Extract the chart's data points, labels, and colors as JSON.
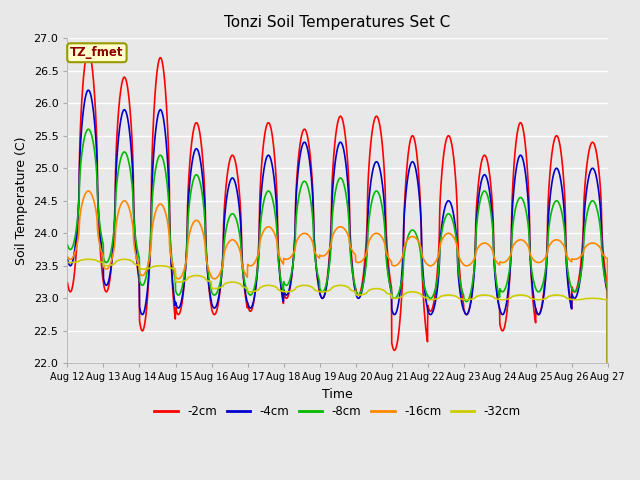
{
  "title": "Tonzi Soil Temperatures Set C",
  "xlabel": "Time",
  "ylabel": "Soil Temperature (C)",
  "ylim": [
    22.0,
    27.0
  ],
  "yticks": [
    22.0,
    22.5,
    23.0,
    23.5,
    24.0,
    24.5,
    25.0,
    25.5,
    26.0,
    26.5,
    27.0
  ],
  "x_labels": [
    "Aug 12",
    "Aug 13",
    "Aug 14",
    "Aug 15",
    "Aug 16",
    "Aug 17",
    "Aug 18",
    "Aug 19",
    "Aug 20",
    "Aug 21",
    "Aug 22",
    "Aug 23",
    "Aug 24",
    "Aug 25",
    "Aug 26",
    "Aug 27"
  ],
  "series_colors": {
    "-2cm": "#ff0000",
    "-4cm": "#0000cc",
    "-8cm": "#00bb00",
    "-16cm": "#ff8800",
    "-32cm": "#cccc00"
  },
  "legend_label": "TZ_fmet",
  "legend_box_facecolor": "#ffffcc",
  "legend_box_edgecolor": "#999900",
  "fig_facecolor": "#e8e8e8",
  "axes_facecolor": "#e8e8e8",
  "grid_color": "#ffffff",
  "lw": 1.2,
  "peaks_2cm": [
    26.8,
    26.4,
    26.7,
    25.7,
    25.2,
    25.7,
    25.6,
    25.8,
    25.8,
    25.5,
    25.5,
    25.2,
    25.7,
    25.5,
    25.4
  ],
  "troughs_2cm": [
    23.1,
    23.1,
    22.5,
    22.75,
    22.75,
    22.8,
    23.0,
    23.0,
    23.05,
    22.2,
    22.8,
    22.75,
    22.5,
    22.75,
    23.1
  ],
  "peaks_4cm": [
    26.2,
    25.9,
    25.9,
    25.3,
    24.85,
    25.2,
    25.4,
    25.4,
    25.1,
    25.1,
    24.5,
    24.9,
    25.2,
    25.0,
    25.0
  ],
  "troughs_4cm": [
    23.5,
    23.2,
    22.75,
    22.85,
    22.85,
    22.85,
    23.05,
    23.0,
    23.0,
    22.75,
    22.75,
    22.75,
    22.75,
    22.75,
    23.0
  ],
  "peaks_8cm": [
    25.6,
    25.25,
    25.2,
    24.9,
    24.3,
    24.65,
    24.8,
    24.85,
    24.65,
    24.05,
    24.3,
    24.65,
    24.55,
    24.5,
    24.5
  ],
  "troughs_8cm": [
    23.75,
    23.55,
    23.2,
    23.05,
    23.05,
    23.05,
    23.2,
    23.1,
    23.05,
    23.0,
    23.0,
    22.95,
    23.1,
    23.1,
    23.1
  ],
  "peaks_16cm": [
    24.65,
    24.5,
    24.45,
    24.2,
    23.9,
    24.1,
    24.0,
    24.1,
    24.0,
    23.95,
    24.0,
    23.85,
    23.9,
    23.9,
    23.85
  ],
  "troughs_16cm": [
    23.6,
    23.45,
    23.35,
    23.3,
    23.3,
    23.5,
    23.6,
    23.65,
    23.55,
    23.5,
    23.5,
    23.5,
    23.55,
    23.55,
    23.6
  ],
  "peaks_32cm": [
    23.6,
    23.6,
    23.5,
    23.35,
    23.25,
    23.2,
    23.2,
    23.2,
    23.15,
    23.1,
    23.05,
    23.05,
    23.05,
    23.05,
    23.0
  ],
  "troughs_32cm": [
    23.55,
    23.5,
    23.45,
    23.25,
    23.15,
    23.1,
    23.1,
    23.1,
    23.05,
    23.0,
    22.98,
    22.98,
    22.98,
    22.98,
    22.98
  ],
  "peak_time": 0.58,
  "n_pts_per_day": 144
}
